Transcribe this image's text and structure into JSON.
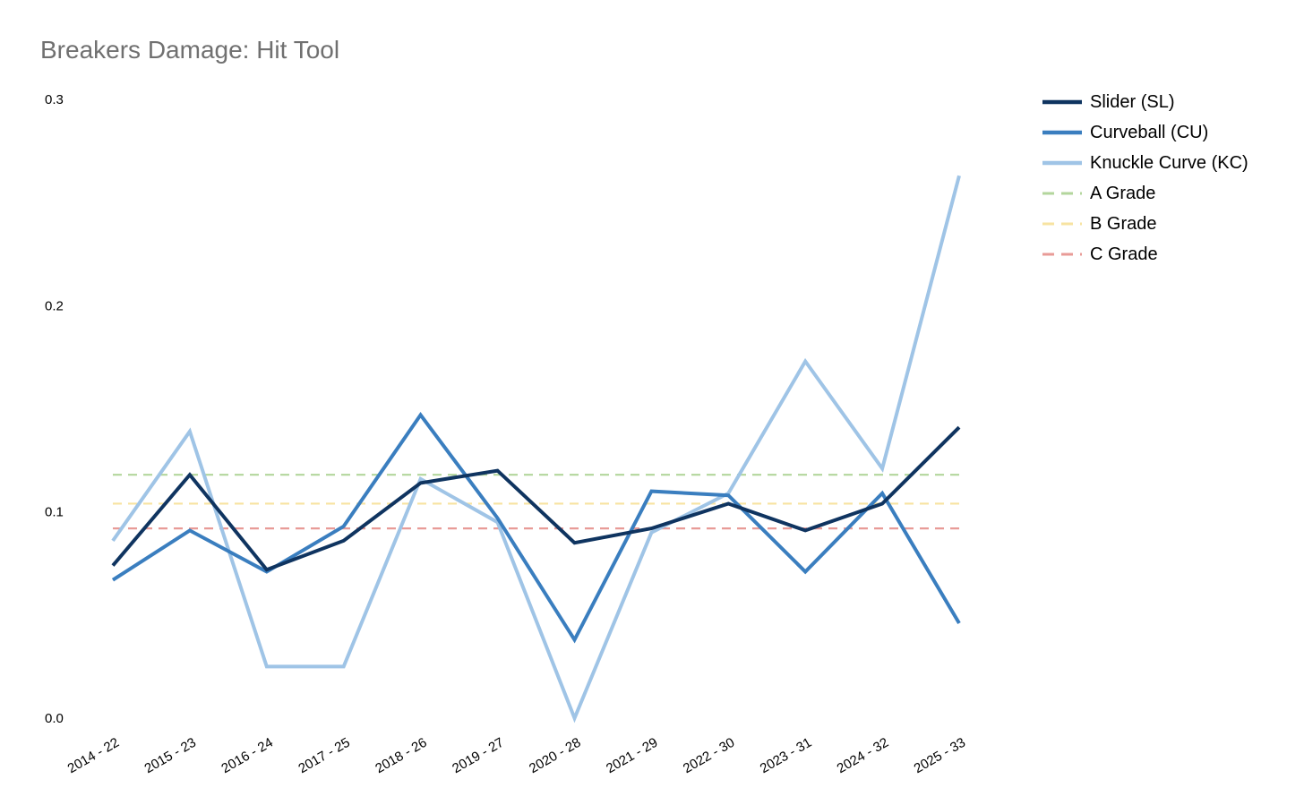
{
  "chart_data": {
    "type": "line",
    "title": "Breakers Damage: Hit Tool",
    "xlabel": "",
    "ylabel": "",
    "categories": [
      "2014 - 22",
      "2015 - 23",
      "2016 - 24",
      "2017 - 25",
      "2018 - 26",
      "2019 - 27",
      "2020 - 28",
      "2021 - 29",
      "2022 - 30",
      "2023 - 31",
      "2024 - 32",
      "2025 - 33"
    ],
    "ylim": [
      0.0,
      0.3
    ],
    "yticks": [
      "0.0",
      "0.1",
      "0.2",
      "0.3"
    ],
    "grid": false,
    "legend_position": "right",
    "series": [
      {
        "name": "Slider (SL)",
        "color": "#0f3460",
        "style": "solid",
        "values": [
          0.074,
          0.118,
          0.072,
          0.086,
          0.114,
          0.12,
          0.085,
          0.092,
          0.104,
          0.091,
          0.104,
          0.141
        ]
      },
      {
        "name": "Curveball (CU)",
        "color": "#3a7ebf",
        "style": "solid",
        "values": [
          0.067,
          0.091,
          0.071,
          0.093,
          0.147,
          0.097,
          0.038,
          0.11,
          0.108,
          0.071,
          0.109,
          0.046
        ]
      },
      {
        "name": "Knuckle Curve (KC)",
        "color": "#9fc4e6",
        "style": "solid",
        "values": [
          0.086,
          0.139,
          0.025,
          0.025,
          0.116,
          0.095,
          0.0,
          0.09,
          0.109,
          0.173,
          0.121,
          0.263
        ]
      }
    ],
    "reference_lines": [
      {
        "name": "A Grade",
        "color": "#b3d69c",
        "style": "dashed",
        "value": 0.118
      },
      {
        "name": "B Grade",
        "color": "#f7e3a1",
        "style": "dashed",
        "value": 0.104
      },
      {
        "name": "C Grade",
        "color": "#e89b97",
        "style": "dashed",
        "value": 0.092
      }
    ]
  }
}
